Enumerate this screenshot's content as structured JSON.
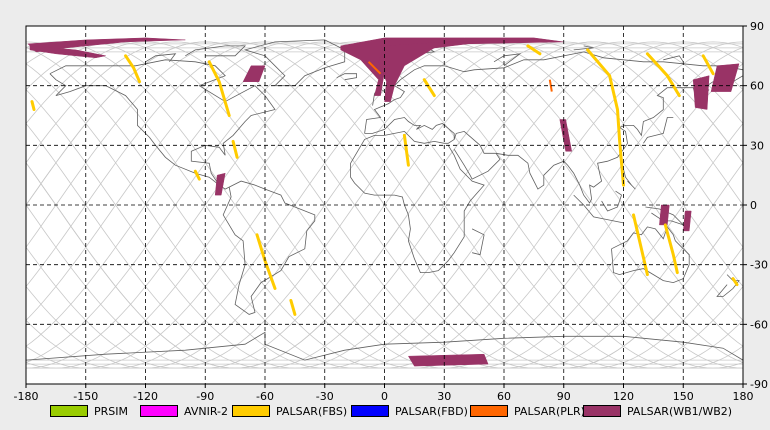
{
  "map": {
    "lon_range": [
      -180,
      180
    ],
    "lat_range": [
      -90,
      90
    ],
    "x_ticks": [
      -180,
      -150,
      -120,
      -90,
      -60,
      -30,
      0,
      30,
      60,
      90,
      120,
      150,
      180
    ],
    "y_ticks": [
      90,
      60,
      30,
      0,
      -30,
      -60,
      -90
    ],
    "grid": "dashed",
    "colors": {
      "background": "#ececec",
      "map_bg": "#ffffff",
      "coastline": "#606060",
      "orbit_lines": "#c8c8c8",
      "grid": "#000000"
    }
  },
  "legend": [
    {
      "label": "PRSIM",
      "color": "#99cc00"
    },
    {
      "label": "AVNIR-2",
      "color": "#ff00ff"
    },
    {
      "label": "PALSAR(FBS)",
      "color": "#ffcc00"
    },
    {
      "label": "PALSAR(FBD)",
      "color": "#0000ff"
    },
    {
      "label": "PALSAR(PLR)",
      "color": "#ff6600"
    },
    {
      "label": "PALSAR(WB1/WB2)",
      "color": "#993366"
    }
  ],
  "coverage": {
    "wb": [
      {
        "name": "wb-north-canada-arctic",
        "pts": [
          [
            -179,
            81
          ],
          [
            -150,
            83
          ],
          [
            -120,
            84
          ],
          [
            -100,
            83
          ],
          [
            -130,
            82
          ],
          [
            -160,
            79
          ],
          [
            -175,
            77
          ]
        ]
      },
      {
        "name": "wb-alaska-strip",
        "pts": [
          [
            -178,
            80
          ],
          [
            -155,
            78
          ],
          [
            -140,
            75
          ],
          [
            -145,
            74
          ],
          [
            -165,
            76
          ],
          [
            -178,
            78
          ]
        ]
      },
      {
        "name": "wb-greenland-atlantic",
        "pts": [
          [
            -22,
            80
          ],
          [
            0,
            84
          ],
          [
            40,
            84
          ],
          [
            75,
            84
          ],
          [
            90,
            82
          ],
          [
            40,
            81
          ],
          [
            10,
            77
          ],
          [
            0,
            67
          ],
          [
            -2,
            55
          ],
          [
            -5,
            55
          ],
          [
            -3,
            63
          ],
          [
            -12,
            73
          ],
          [
            -22,
            78
          ]
        ]
      },
      {
        "name": "wb-europe-arm",
        "pts": [
          [
            0,
            80
          ],
          [
            30,
            82
          ],
          [
            50,
            82
          ],
          [
            25,
            79
          ],
          [
            10,
            70
          ],
          [
            5,
            60
          ],
          [
            3,
            52
          ],
          [
            0,
            52
          ],
          [
            1,
            62
          ],
          [
            -3,
            72
          ]
        ]
      },
      {
        "name": "wb-hudson",
        "pts": [
          [
            -67,
            70
          ],
          [
            -60,
            70
          ],
          [
            -63,
            62
          ],
          [
            -71,
            62
          ]
        ]
      },
      {
        "name": "wb-central-america",
        "pts": [
          [
            -84,
            15
          ],
          [
            -80,
            16
          ],
          [
            -82,
            5
          ],
          [
            -85,
            5
          ]
        ]
      },
      {
        "name": "wb-india",
        "pts": [
          [
            88,
            43
          ],
          [
            91,
            43
          ],
          [
            94,
            27
          ],
          [
            91,
            27
          ]
        ]
      },
      {
        "name": "wb-siberia-east",
        "pts": [
          [
            155,
            63
          ],
          [
            163,
            65
          ],
          [
            162,
            48
          ],
          [
            156,
            49
          ]
        ]
      },
      {
        "name": "wb-kamchatka",
        "pts": [
          [
            167,
            70
          ],
          [
            178,
            71
          ],
          [
            174,
            57
          ],
          [
            164,
            57
          ]
        ]
      },
      {
        "name": "wb-indonesia-1",
        "pts": [
          [
            139,
            0
          ],
          [
            143,
            0
          ],
          [
            142,
            -10
          ],
          [
            138,
            -10
          ]
        ]
      },
      {
        "name": "wb-indonesia-2",
        "pts": [
          [
            151,
            -3
          ],
          [
            154,
            -3
          ],
          [
            153,
            -13
          ],
          [
            150,
            -13
          ]
        ]
      },
      {
        "name": "wb-antarctica",
        "pts": [
          [
            12,
            -76
          ],
          [
            50,
            -75
          ],
          [
            52,
            -80
          ],
          [
            15,
            -81
          ]
        ]
      }
    ],
    "fbs": [
      {
        "name": "fbs-alaska",
        "pts": [
          [
            -130,
            75
          ],
          [
            -126,
            69
          ],
          [
            -123,
            62
          ]
        ]
      },
      {
        "name": "fbs-canada",
        "pts": [
          [
            -88,
            72
          ],
          [
            -83,
            62
          ],
          [
            -78,
            45
          ]
        ]
      },
      {
        "name": "fbs-us",
        "pts": [
          [
            -76,
            32
          ],
          [
            -74,
            24
          ]
        ]
      },
      {
        "name": "fbs-brazil",
        "pts": [
          [
            -64,
            -15
          ],
          [
            -60,
            -28
          ],
          [
            -55,
            -42
          ]
        ]
      },
      {
        "name": "fbs-patagonia",
        "pts": [
          [
            -47,
            -48
          ],
          [
            -45,
            -55
          ]
        ]
      },
      {
        "name": "fbs-africa",
        "pts": [
          [
            10,
            35
          ],
          [
            12,
            20
          ]
        ]
      },
      {
        "name": "fbs-north-sea",
        "pts": [
          [
            20,
            63
          ],
          [
            25,
            55
          ]
        ]
      },
      {
        "name": "fbs-siberia",
        "pts": [
          [
            102,
            78
          ],
          [
            113,
            65
          ],
          [
            117,
            48
          ],
          [
            118,
            33
          ],
          [
            120,
            10
          ]
        ]
      },
      {
        "name": "fbs-east-siberia",
        "pts": [
          [
            132,
            76
          ],
          [
            142,
            65
          ],
          [
            148,
            55
          ]
        ]
      },
      {
        "name": "fbs-far-east",
        "pts": [
          [
            160,
            75
          ],
          [
            165,
            66
          ]
        ]
      },
      {
        "name": "fbs-australia",
        "pts": [
          [
            125,
            -5
          ],
          [
            129,
            -22
          ],
          [
            132,
            -35
          ]
        ]
      },
      {
        "name": "fbs-new-guinea",
        "pts": [
          [
            141,
            -10
          ],
          [
            145,
            -25
          ],
          [
            147,
            -34
          ]
        ]
      },
      {
        "name": "fbs-nz",
        "pts": [
          [
            175,
            -37
          ],
          [
            177,
            -40
          ]
        ]
      },
      {
        "name": "fbs-north-atlantic",
        "pts": [
          [
            72,
            80
          ],
          [
            78,
            76
          ]
        ]
      },
      {
        "name": "fbs-pacific-w",
        "pts": [
          [
            -177,
            52
          ],
          [
            -176,
            48
          ]
        ]
      },
      {
        "name": "fbs-caribbean",
        "pts": [
          [
            -95,
            17
          ],
          [
            -93,
            13
          ]
        ]
      }
    ],
    "plr": [
      {
        "name": "plr-greenland",
        "pts": [
          [
            -8,
            72
          ],
          [
            -2,
            66
          ]
        ]
      },
      {
        "name": "plr-asia",
        "pts": [
          [
            83,
            63
          ],
          [
            84,
            57
          ]
        ]
      }
    ]
  }
}
